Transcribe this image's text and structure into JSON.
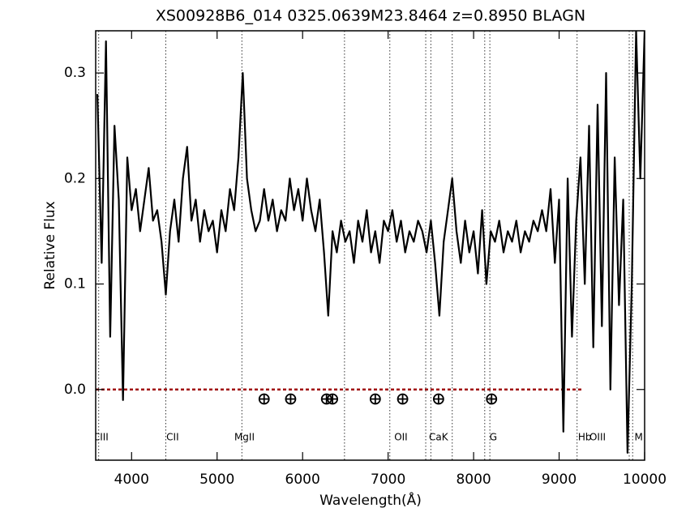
{
  "chart_data": {
    "type": "line",
    "title": "XS00928B6_014  0325.0639M23.8464  z=0.8950  BLAGN",
    "x_label": "Wavelength(Å)",
    "y_label": "Relative Flux",
    "xlim": [
      3580,
      10000
    ],
    "ylim": [
      -0.067,
      0.34
    ],
    "xticks": [
      4000,
      5000,
      6000,
      7000,
      8000,
      9000,
      10000
    ],
    "yticks": [
      {
        "value": 0,
        "label": "0.0"
      },
      0.1,
      0.2,
      0.3
    ],
    "color": "#000000",
    "x": [
      3600,
      3650,
      3700,
      3750,
      3800,
      3850,
      3900,
      3950,
      4000,
      4050,
      4100,
      4150,
      4200,
      4250,
      4300,
      4350,
      4400,
      4450,
      4500,
      4550,
      4600,
      4650,
      4700,
      4750,
      4800,
      4850,
      4900,
      4950,
      5000,
      5050,
      5100,
      5150,
      5200,
      5250,
      5300,
      5350,
      5400,
      5450,
      5500,
      5550,
      5600,
      5650,
      5700,
      5750,
      5800,
      5850,
      5900,
      5950,
      6000,
      6050,
      6100,
      6150,
      6200,
      6250,
      6300,
      6350,
      6400,
      6450,
      6500,
      6550,
      6600,
      6650,
      6700,
      6750,
      6800,
      6850,
      6900,
      6950,
      7000,
      7050,
      7100,
      7150,
      7200,
      7250,
      7300,
      7350,
      7400,
      7450,
      7500,
      7550,
      7600,
      7650,
      7700,
      7750,
      7800,
      7850,
      7900,
      7950,
      8000,
      8050,
      8100,
      8150,
      8200,
      8250,
      8300,
      8350,
      8400,
      8450,
      8500,
      8550,
      8600,
      8650,
      8700,
      8750,
      8800,
      8850,
      8900,
      8950,
      9000,
      9050,
      9100,
      9150,
      9200,
      9250,
      9300,
      9350,
      9400,
      9450,
      9500,
      9550,
      9600,
      9650,
      9700,
      9750,
      9800,
      9850,
      9900,
      9950,
      10000
    ],
    "values": [
      0.28,
      0.12,
      0.33,
      0.05,
      0.25,
      0.18,
      -0.01,
      0.22,
      0.17,
      0.19,
      0.15,
      0.18,
      0.21,
      0.16,
      0.17,
      0.14,
      0.09,
      0.15,
      0.18,
      0.14,
      0.2,
      0.23,
      0.16,
      0.18,
      0.14,
      0.17,
      0.15,
      0.16,
      0.13,
      0.17,
      0.15,
      0.19,
      0.17,
      0.22,
      0.3,
      0.2,
      0.17,
      0.15,
      0.16,
      0.19,
      0.16,
      0.18,
      0.15,
      0.17,
      0.16,
      0.2,
      0.17,
      0.19,
      0.16,
      0.2,
      0.17,
      0.15,
      0.18,
      0.13,
      0.07,
      0.15,
      0.13,
      0.16,
      0.14,
      0.15,
      0.12,
      0.16,
      0.14,
      0.17,
      0.13,
      0.15,
      0.12,
      0.16,
      0.15,
      0.17,
      0.14,
      0.16,
      0.13,
      0.15,
      0.14,
      0.16,
      0.15,
      0.13,
      0.16,
      0.12,
      0.07,
      0.14,
      0.17,
      0.2,
      0.15,
      0.12,
      0.16,
      0.13,
      0.15,
      0.11,
      0.17,
      0.1,
      0.15,
      0.14,
      0.16,
      0.13,
      0.15,
      0.14,
      0.16,
      0.13,
      0.15,
      0.14,
      0.16,
      0.15,
      0.17,
      0.15,
      0.19,
      0.12,
      0.18,
      -0.04,
      0.2,
      0.05,
      0.16,
      0.22,
      0.1,
      0.25,
      0.04,
      0.27,
      0.06,
      0.3,
      0.0,
      0.22,
      0.08,
      0.18,
      -0.06,
      0.1,
      0.34,
      0.2,
      0.34
    ],
    "line_markers": [
      3615,
      4400,
      5290,
      6490,
      7020,
      7440,
      7500,
      7750,
      8130,
      8190,
      9210,
      9820,
      9860
    ],
    "line_labels": [
      {
        "label": "CIII",
        "x": 3640
      },
      {
        "label": "CII",
        "x": 4480
      },
      {
        "label": "MgII",
        "x": 5320
      },
      {
        "label": "OII",
        "x": 7150
      },
      {
        "label": "CaK",
        "x": 7590
      },
      {
        "label": "G",
        "x": 8230
      },
      {
        "label": "Hb",
        "x": 9300
      },
      {
        "label": "OIII",
        "x": 9450
      },
      {
        "label": "M",
        "x": 9930
      }
    ],
    "telluric_x": [
      5550,
      5860,
      6280,
      6350,
      6850,
      7170,
      7590,
      8210
    ],
    "telluric_y": -0.009,
    "reference_line": {
      "y": 0,
      "x_end": 9280,
      "color": "#a01010"
    }
  }
}
